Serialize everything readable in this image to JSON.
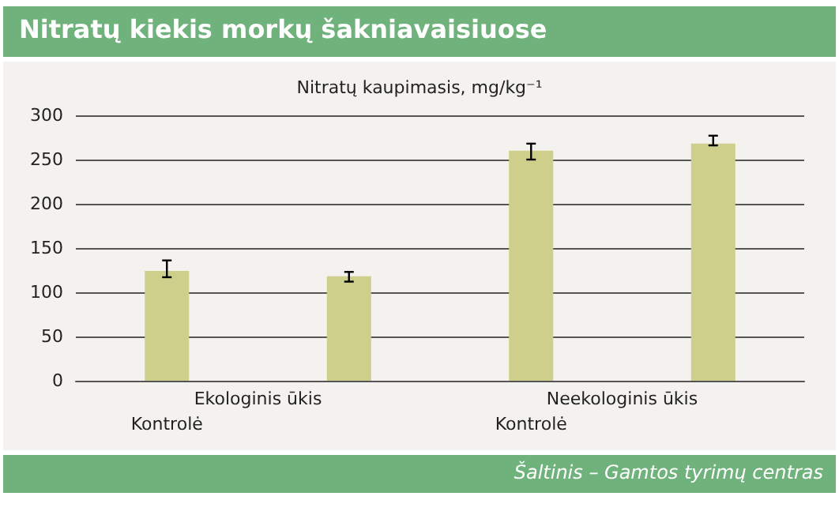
{
  "chart_data": {
    "type": "bar",
    "title": "Nitratų kiekis morkų šakniavaisiuose",
    "ylabel": "Nitratų kaupimasis, mg/kg⁻¹",
    "categories": [
      "Kontrolė",
      null,
      "Kontrolė",
      null
    ],
    "values": [
      124,
      118,
      260,
      268
    ],
    "errors": [
      [
        117,
        136
      ],
      [
        112,
        123
      ],
      [
        250,
        268
      ],
      [
        266,
        277
      ]
    ],
    "color": "#cfcf8c",
    "ylim": [
      0,
      300
    ],
    "yticks": [
      0,
      50,
      100,
      150,
      200,
      250,
      300
    ],
    "grid": "y",
    "annotations": [
      "Ekologinis ūkis",
      "Neekologinis ūkis",
      "Šaltinis – Gamtos tyrimų centras"
    ]
  }
}
